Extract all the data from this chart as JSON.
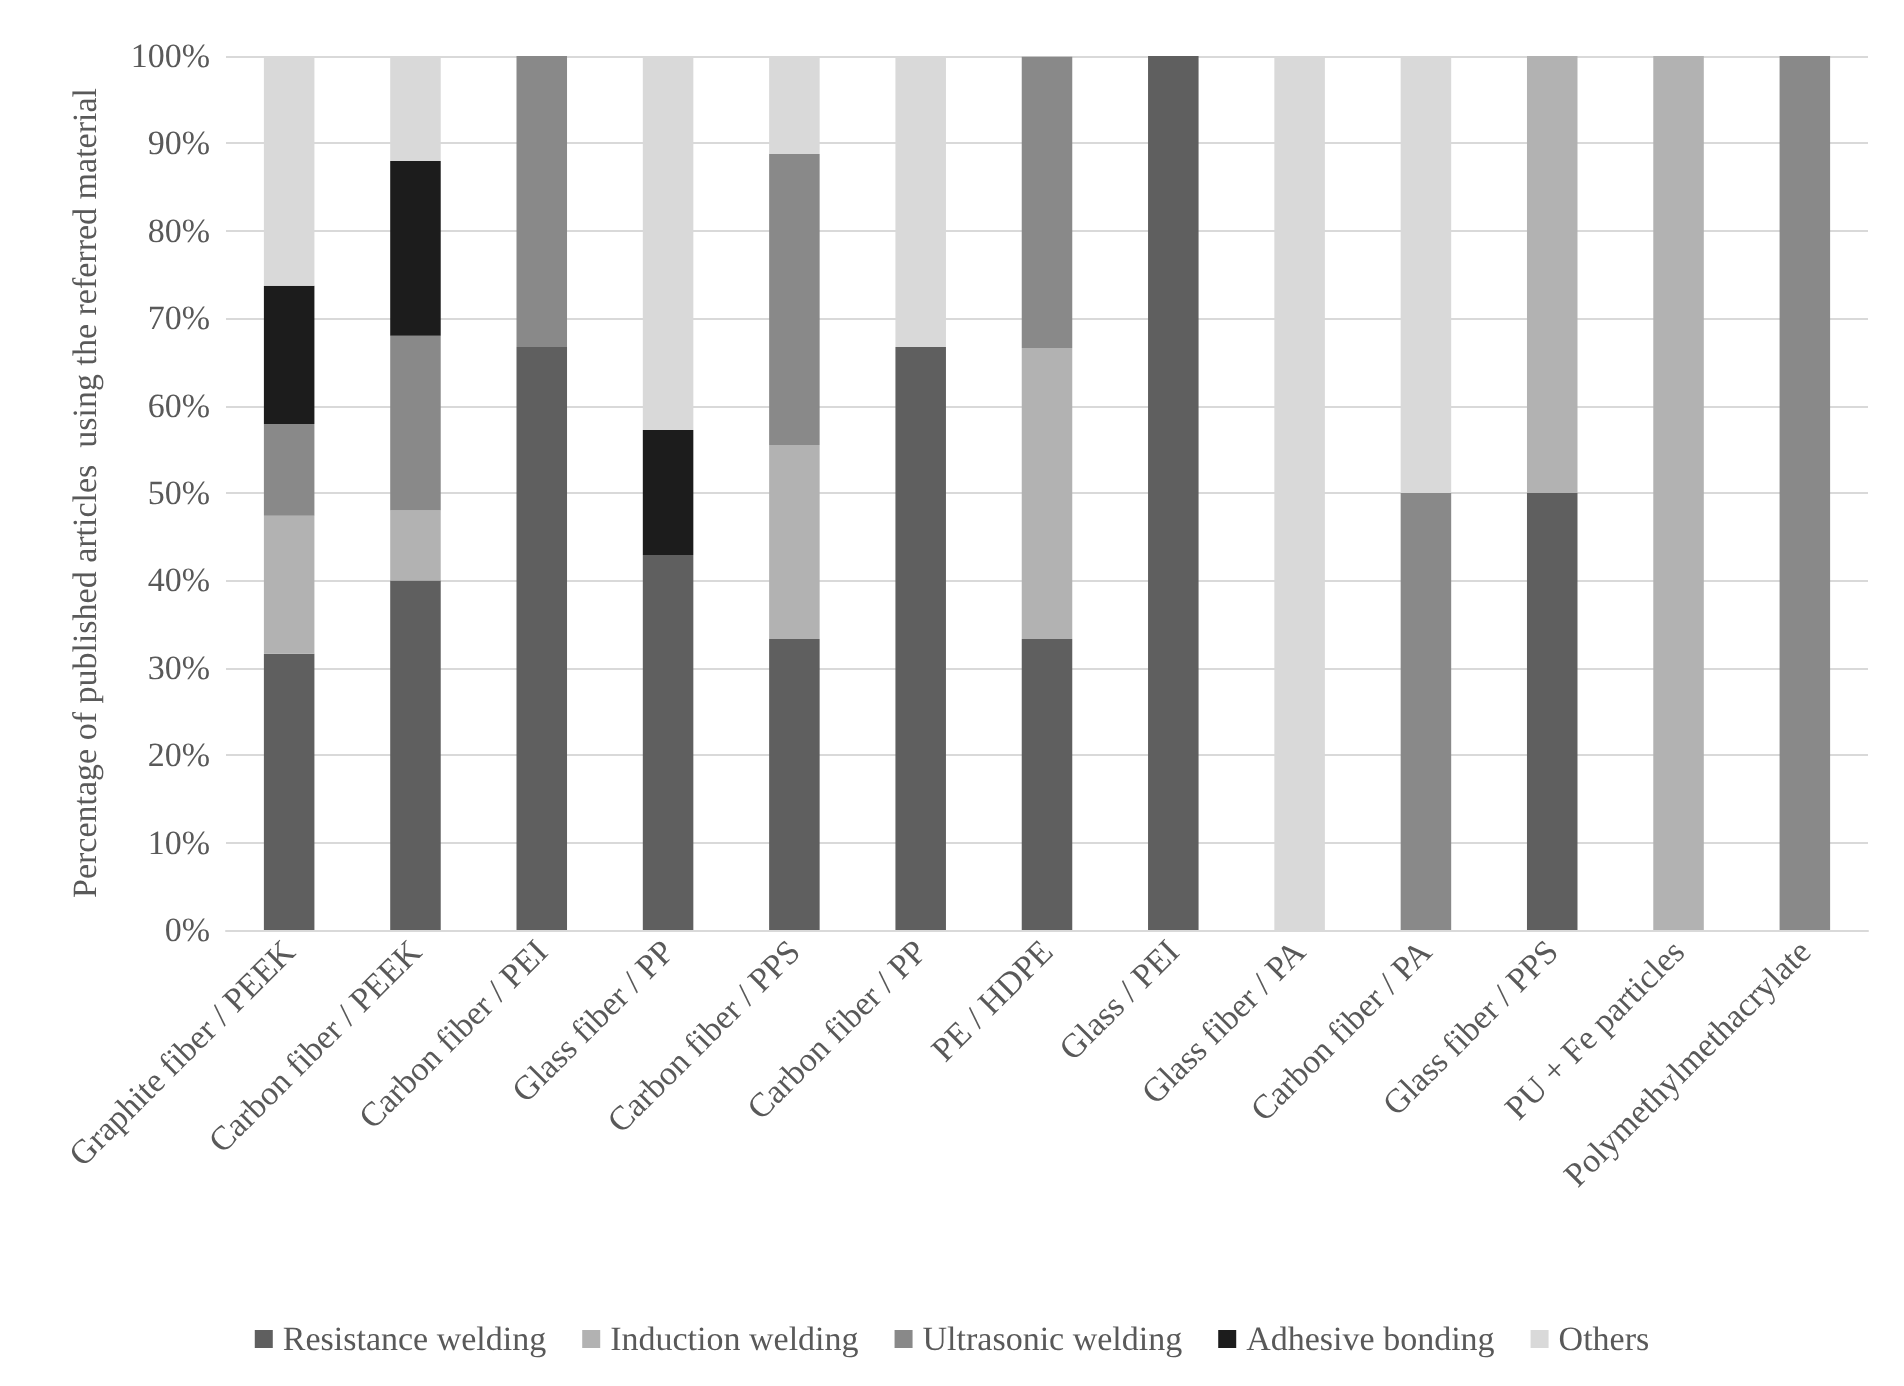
{
  "chart_data": {
    "type": "bar",
    "stacked": true,
    "ylabel": "Percentage of published articles  using the referred material",
    "categories": [
      "Graphite fiber / PEEK",
      "Carbon fiber / PEEK",
      "Carbon fiber / PEI",
      "Glass fiber / PP",
      "Carbon fiber / PPS",
      "Carbon fiber / PP",
      "PE / HDPE",
      "Glass / PEI",
      "Glass fiber / PA",
      "Carbon fiber / PA",
      "Glass fiber / PPS",
      "PU + Fe particles",
      "Polymethylmethacrylate"
    ],
    "series": [
      {
        "name": "Resistance welding",
        "color": "#5f5f5f",
        "values": [
          31.6,
          40,
          66.7,
          42.9,
          33.3,
          66.7,
          33.3,
          100,
          0,
          0,
          50,
          0,
          0
        ]
      },
      {
        "name": "Induction welding",
        "color": "#b2b2b2",
        "values": [
          15.8,
          8,
          0,
          0,
          22.2,
          0,
          33.3,
          0,
          0,
          0,
          50,
          100,
          0
        ]
      },
      {
        "name": "Ultrasonic welding",
        "color": "#898989",
        "values": [
          10.5,
          20,
          33.3,
          0,
          33.3,
          0,
          33.3,
          0,
          0,
          50,
          0,
          0,
          100
        ]
      },
      {
        "name": "Adhesive bonding",
        "color": "#1c1c1c",
        "values": [
          15.8,
          20,
          0,
          14.3,
          0,
          0,
          0,
          0,
          0,
          0,
          0,
          0,
          0
        ]
      },
      {
        "name": "Others",
        "color": "#d9d9d9",
        "values": [
          26.3,
          12,
          0,
          42.9,
          11.1,
          33.3,
          0,
          0,
          100,
          50,
          0,
          0,
          0
        ]
      }
    ],
    "ylim": [
      0,
      100
    ],
    "yticks": [
      {
        "value": 0,
        "label": "0%"
      },
      {
        "value": 10,
        "label": "10%"
      },
      {
        "value": 20,
        "label": "20%"
      },
      {
        "value": 30,
        "label": "30%"
      },
      {
        "value": 40,
        "label": "40%"
      },
      {
        "value": 50,
        "label": "50%"
      },
      {
        "value": 60,
        "label": "60%"
      },
      {
        "value": 70,
        "label": "70%"
      },
      {
        "value": 80,
        "label": "80%"
      },
      {
        "value": 90,
        "label": "90%"
      },
      {
        "value": 100,
        "label": "100%"
      }
    ],
    "grid": "y",
    "legend": "bottom"
  }
}
